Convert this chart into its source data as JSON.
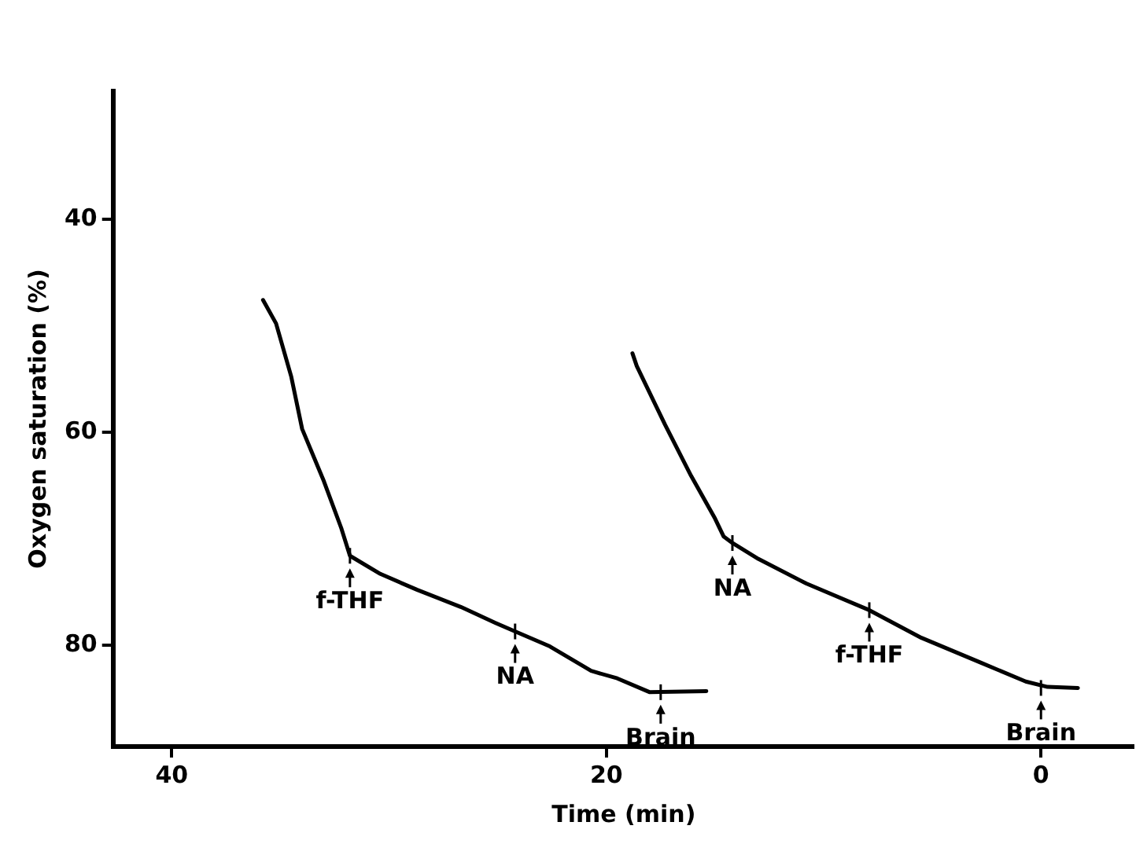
{
  "chart_data": {
    "type": "line",
    "xlabel": "Time (min)",
    "ylabel": "Oxygen saturation (%)",
    "xlim": [
      42.7,
      -4.3
    ],
    "xticks": [
      40,
      20,
      0
    ],
    "ylim": [
      89.5,
      28
    ],
    "yticks": [
      40,
      60,
      80
    ],
    "grid": false,
    "legend": false,
    "marker": "none",
    "line_style": "solid",
    "series": [
      {
        "color": "#000000",
        "x": [
          35.8,
          35.2,
          34.5,
          34.0,
          33.0,
          32.2,
          31.8,
          30.4,
          28.7,
          26.7,
          25.1,
          24.2,
          22.6,
          20.7,
          19.5,
          18.0,
          15.4
        ],
        "values": [
          47.6,
          49.8,
          54.8,
          59.7,
          64.6,
          69.0,
          71.6,
          73.3,
          74.8,
          76.4,
          77.9,
          78.7,
          80.1,
          82.4,
          83.1,
          84.4,
          84.3
        ]
      },
      {
        "color": "#000000",
        "x": [
          18.8,
          18.6,
          17.3,
          16.1,
          15.0,
          14.6,
          14.2,
          13.0,
          10.8,
          7.9,
          5.5,
          2.8,
          0.7,
          -0.3,
          -1.7
        ],
        "values": [
          52.6,
          53.8,
          59.3,
          64.1,
          68.1,
          69.8,
          70.4,
          71.9,
          74.2,
          76.7,
          79.3,
          81.6,
          83.4,
          83.9,
          84.0
        ]
      }
    ],
    "annotations": [
      {
        "text": "f-THF",
        "x": 31.8,
        "y": 71.6
      },
      {
        "text": "NA",
        "x": 24.2,
        "y": 78.7
      },
      {
        "text": "Brain",
        "x": 17.5,
        "y": 84.4
      },
      {
        "text": "NA",
        "x": 14.2,
        "y": 70.4
      },
      {
        "text": "f-THF",
        "x": 7.9,
        "y": 76.7
      },
      {
        "text": "Brain",
        "x": 0,
        "y": 84.0
      }
    ]
  }
}
